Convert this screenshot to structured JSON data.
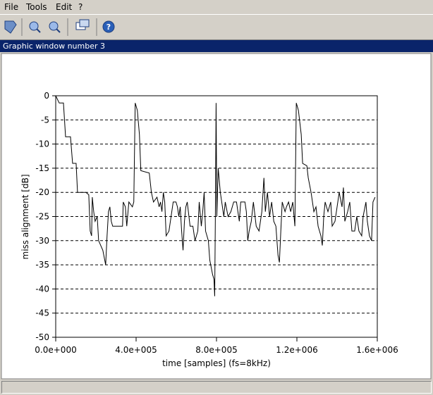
{
  "menu": [
    "File",
    "Tools",
    "Edit",
    "?"
  ],
  "window_title": "Graphic window number 3",
  "chart_data": {
    "type": "line",
    "xlabel": "time [samples] (fs=8kHz)",
    "ylabel": "miss alignment [dB]",
    "color": "#000000",
    "grid": true,
    "xlim": [
      0,
      1600000
    ],
    "ylim": [
      -50,
      0
    ],
    "xticks": [
      {
        "value": 0,
        "label": "0.0e+000"
      },
      {
        "value": 400000,
        "label": "4.0e+005"
      },
      {
        "value": 800000,
        "label": "8.0e+005"
      },
      {
        "value": 1200000,
        "label": "1.2e+006"
      },
      {
        "value": 1600000,
        "label": "1.6e+006"
      }
    ],
    "yticks": [
      0,
      -5,
      -10,
      -15,
      -20,
      -25,
      -30,
      -35,
      -40,
      -45,
      -50
    ],
    "x": [
      0,
      17500,
      38500,
      49000,
      73500,
      84000,
      101500,
      108500,
      150500,
      164500,
      171500,
      178500,
      182000,
      189000,
      196000,
      206500,
      213500,
      234500,
      248500,
      255500,
      262500,
      269500,
      276500,
      283500,
      332500,
      336000,
      346500,
      353500,
      364000,
      381500,
      388500,
      395500,
      406000,
      416500,
      423500,
      465500,
      476000,
      486500,
      504000,
      514500,
      521500,
      528500,
      535500,
      542500,
      549500,
      563500,
      577500,
      584500,
      598500,
      605500,
      612500,
      619500,
      626500,
      633500,
      640500,
      647500,
      654500,
      668500,
      682500,
      693000,
      707000,
      714000,
      724500,
      731500,
      738500,
      745500,
      759500,
      766500,
      780500,
      787500,
      791000,
      794500,
      798000,
      801500,
      808500,
      819000,
      829500,
      836500,
      843500,
      857500,
      871500,
      885500,
      899500,
      913500,
      920500,
      941500,
      948500,
      955500,
      962500,
      973000,
      983500,
      997500,
      1011500,
      1025500,
      1036000,
      1043000,
      1053500,
      1064000,
      1074500,
      1085000,
      1095500,
      1106000,
      1113000,
      1120000,
      1127000,
      1141000,
      1148000,
      1158500,
      1169000,
      1179500,
      1190000,
      1197000,
      1207500,
      1221500,
      1228500,
      1249500,
      1256500,
      1270500,
      1284500,
      1295000,
      1305500,
      1319500,
      1326500,
      1333500,
      1340500,
      1354500,
      1368500,
      1375500,
      1389500,
      1400000,
      1410500,
      1424500,
      1431500,
      1438500,
      1452500,
      1463000,
      1473500,
      1487500,
      1498000,
      1508500,
      1522500,
      1529500,
      1543500,
      1550500,
      1561000,
      1571500,
      1578500,
      1589000
    ],
    "values": [
      0,
      -1.5,
      -1.5,
      -8.5,
      -8.5,
      -14,
      -14,
      -20,
      -20,
      -20.5,
      -28,
      -29,
      -21,
      -24,
      -26,
      -25,
      -30,
      -32,
      -35,
      -29,
      -24,
      -23,
      -26,
      -27,
      -27,
      -22,
      -23,
      -27,
      -22,
      -23,
      -22,
      -1.5,
      -3,
      -8,
      -15.5,
      -16,
      -20,
      -22,
      -21,
      -23,
      -22,
      -24,
      -20,
      -22,
      -29,
      -28,
      -24,
      -22,
      -22,
      -23,
      -25,
      -23,
      -28,
      -32,
      -26,
      -23,
      -22,
      -27,
      -27,
      -30,
      -28,
      -22,
      -27,
      -24,
      -20,
      -28,
      -30,
      -34,
      -37,
      -38,
      -41.5,
      -24,
      -1.5,
      -25,
      -15,
      -20,
      -23,
      -25,
      -22,
      -25,
      -24,
      -22,
      -22,
      -26,
      -22,
      -22,
      -24,
      -30,
      -28,
      -26,
      -22,
      -27,
      -28,
      -24,
      -17,
      -24,
      -20,
      -25,
      -22,
      -26,
      -27,
      -33,
      -34.5,
      -28,
      -22,
      -24,
      -23,
      -22,
      -24,
      -22,
      -27,
      -1.5,
      -3,
      -8,
      -14,
      -14.5,
      -17,
      -20,
      -24,
      -23,
      -27,
      -29,
      -31,
      -25,
      -22,
      -24,
      -22,
      -27,
      -26,
      -23,
      -20,
      -23,
      -19,
      -26,
      -24,
      -22,
      -28,
      -28,
      -25,
      -28,
      -29,
      -25,
      -22,
      -26,
      -29,
      -30,
      -22,
      -21
    ]
  }
}
